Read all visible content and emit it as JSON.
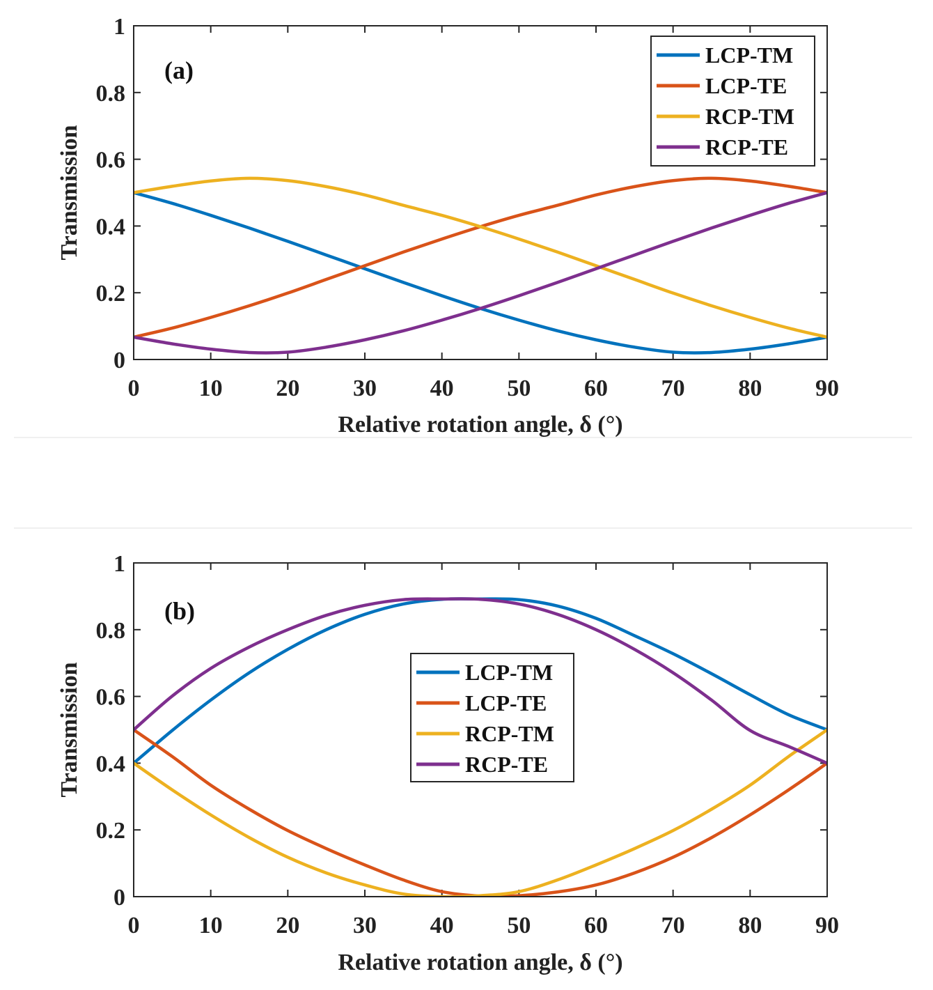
{
  "chart_data": [
    {
      "type": "line",
      "panel_label": "(a)",
      "xlabel": "Relative rotation angle, δ (°)",
      "ylabel": "Transmission",
      "xlim": [
        0,
        90
      ],
      "ylim": [
        0,
        1
      ],
      "xticks": [
        0,
        10,
        20,
        30,
        40,
        50,
        60,
        70,
        80,
        90
      ],
      "xtick_labels": [
        "0",
        "10",
        "20",
        "30",
        "40",
        "50",
        "60",
        "70",
        "80",
        "90"
      ],
      "yticks": [
        0,
        0.2,
        0.4,
        0.6,
        0.8,
        1
      ],
      "ytick_labels": [
        "0",
        "0.2",
        "0.4",
        "0.6",
        "0.8",
        "1"
      ],
      "legend_position": "top-right",
      "x": [
        0,
        5,
        10,
        15,
        20,
        25,
        30,
        35,
        40,
        45,
        50,
        55,
        60,
        65,
        70,
        75,
        80,
        85,
        90
      ],
      "series": [
        {
          "name": "LCP-TM",
          "color": "#0072BD",
          "values": [
            0.5,
            0.468,
            0.432,
            0.394,
            0.354,
            0.313,
            0.272,
            0.231,
            0.191,
            0.153,
            0.118,
            0.086,
            0.059,
            0.037,
            0.022,
            0.021,
            0.031,
            0.047,
            0.067
          ]
        },
        {
          "name": "LCP-TE",
          "color": "#D95319",
          "values": [
            0.067,
            0.094,
            0.126,
            0.161,
            0.199,
            0.24,
            0.281,
            0.322,
            0.361,
            0.398,
            0.432,
            0.462,
            0.493,
            0.518,
            0.536,
            0.543,
            0.535,
            0.519,
            0.5
          ]
        },
        {
          "name": "RCP-TM",
          "color": "#EDB120",
          "values": [
            0.5,
            0.519,
            0.535,
            0.543,
            0.536,
            0.518,
            0.493,
            0.462,
            0.432,
            0.398,
            0.361,
            0.322,
            0.281,
            0.24,
            0.199,
            0.161,
            0.126,
            0.094,
            0.067
          ]
        },
        {
          "name": "RCP-TE",
          "color": "#7E2F8E",
          "values": [
            0.067,
            0.047,
            0.031,
            0.021,
            0.022,
            0.037,
            0.059,
            0.086,
            0.118,
            0.153,
            0.191,
            0.231,
            0.272,
            0.313,
            0.354,
            0.394,
            0.432,
            0.468,
            0.5
          ]
        }
      ]
    },
    {
      "type": "line",
      "panel_label": "(b)",
      "xlabel": "Relative rotation angle, δ (°)",
      "ylabel": "Transmission",
      "xlim": [
        0,
        90
      ],
      "ylim": [
        0,
        1
      ],
      "xticks": [
        0,
        10,
        20,
        30,
        40,
        50,
        60,
        70,
        80,
        90
      ],
      "xtick_labels": [
        "0",
        "10",
        "20",
        "30",
        "40",
        "50",
        "60",
        "70",
        "80",
        "90"
      ],
      "yticks": [
        0,
        0.2,
        0.4,
        0.6,
        0.8,
        1
      ],
      "ytick_labels": [
        "0",
        "0.2",
        "0.4",
        "0.6",
        "0.8",
        "1"
      ],
      "legend_position": "center",
      "x": [
        0,
        5,
        10,
        15,
        20,
        25,
        30,
        35,
        40,
        45,
        50,
        55,
        60,
        65,
        70,
        75,
        80,
        85,
        90
      ],
      "series": [
        {
          "name": "LCP-TM",
          "color": "#0072BD",
          "values": [
            0.4,
            0.498,
            0.589,
            0.671,
            0.741,
            0.8,
            0.846,
            0.877,
            0.891,
            0.892,
            0.89,
            0.871,
            0.834,
            0.782,
            0.728,
            0.668,
            0.605,
            0.545,
            0.5
          ]
        },
        {
          "name": "LCP-TE",
          "color": "#D95319",
          "values": [
            0.5,
            0.42,
            0.334,
            0.262,
            0.198,
            0.144,
            0.095,
            0.05,
            0.015,
            0.002,
            0.003,
            0.014,
            0.035,
            0.071,
            0.118,
            0.177,
            0.245,
            0.32,
            0.4
          ]
        },
        {
          "name": "RCP-TM",
          "color": "#EDB120",
          "values": [
            0.4,
            0.32,
            0.245,
            0.177,
            0.118,
            0.071,
            0.035,
            0.008,
            0.0,
            0.003,
            0.015,
            0.05,
            0.095,
            0.144,
            0.198,
            0.262,
            0.334,
            0.42,
            0.5
          ]
        },
        {
          "name": "RCP-TE",
          "color": "#7E2F8E",
          "values": [
            0.5,
            0.601,
            0.684,
            0.748,
            0.8,
            0.843,
            0.873,
            0.89,
            0.892,
            0.891,
            0.877,
            0.846,
            0.8,
            0.741,
            0.671,
            0.589,
            0.498,
            0.45,
            0.4
          ]
        }
      ]
    }
  ]
}
